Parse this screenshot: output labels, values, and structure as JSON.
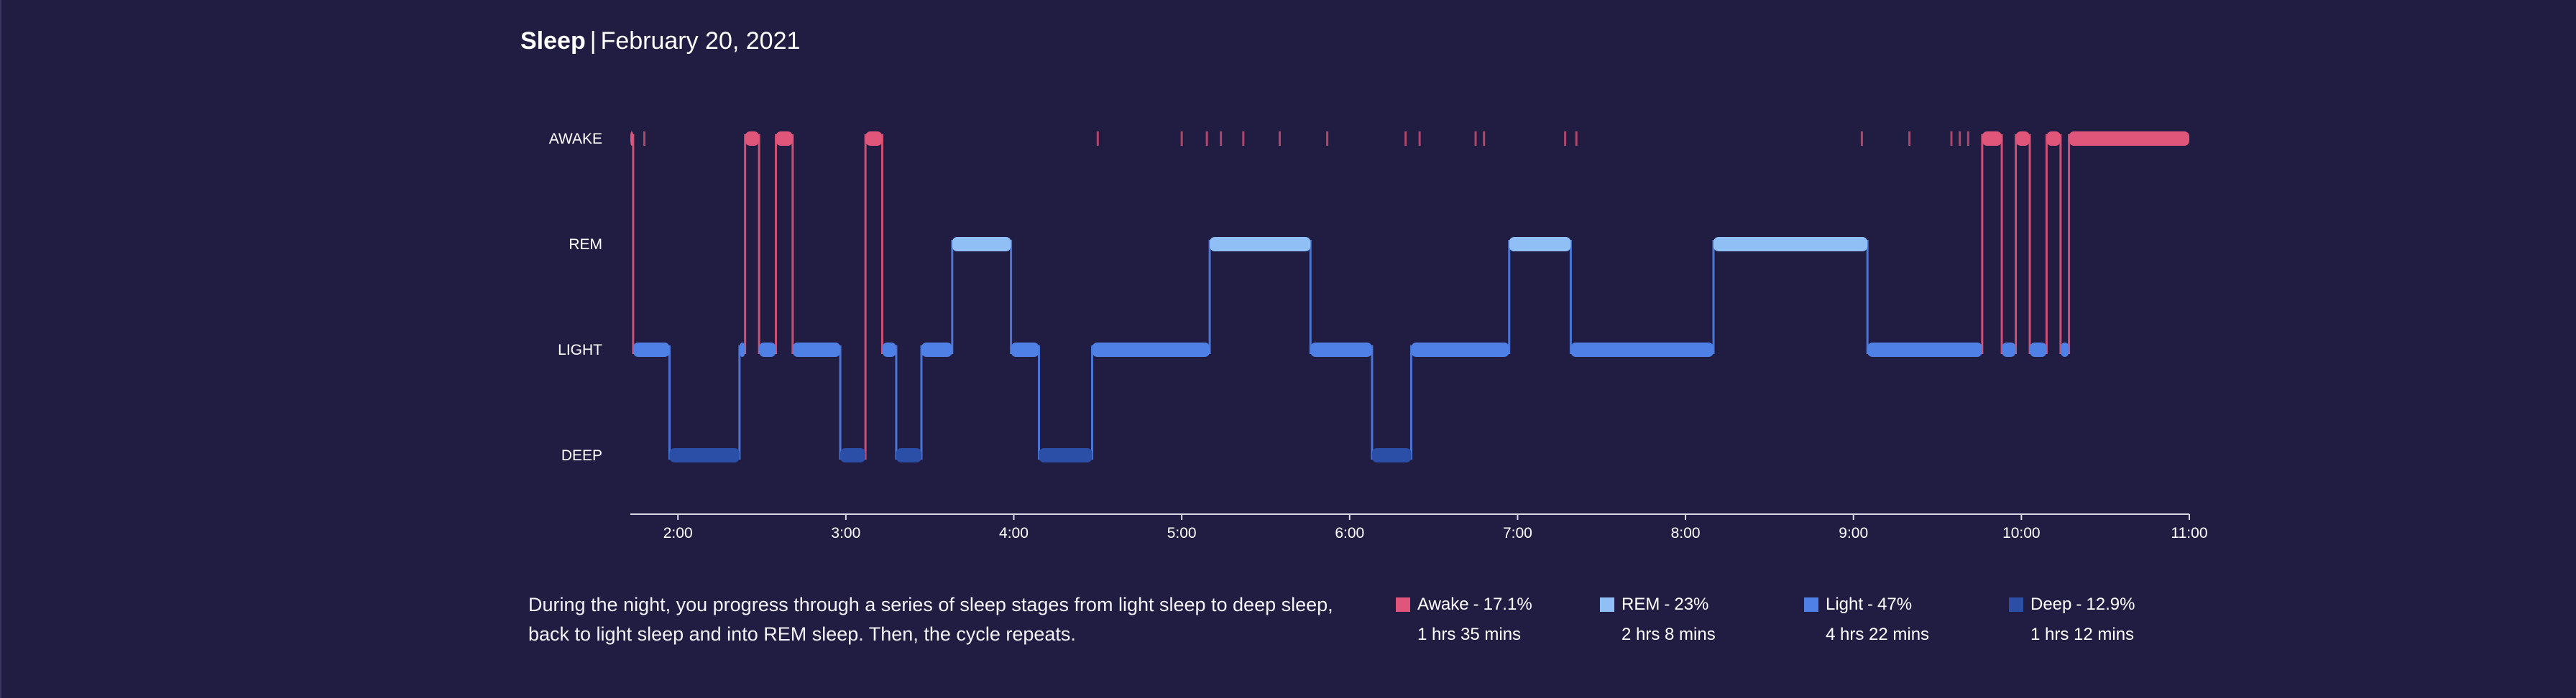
{
  "header": {
    "title": "Sleep",
    "separator": "|",
    "date": "February 20, 2021"
  },
  "description": "During the night, you progress through a series of sleep stages from light sleep to deep sleep, back to light sleep and into REM sleep. Then, the cycle repeats.",
  "legend": [
    {
      "name": "Awake",
      "dash": "-",
      "percent": "17.1%",
      "duration": "1 hrs 35 mins",
      "color": "#e0567a"
    },
    {
      "name": "REM",
      "dash": "-",
      "percent": "23%",
      "duration": "2 hrs 8 mins",
      "color": "#8fbff5"
    },
    {
      "name": "Light",
      "dash": "-",
      "percent": "47%",
      "duration": "4 hrs 22 mins",
      "color": "#4f80e6"
    },
    {
      "name": "Deep",
      "dash": "-",
      "percent": "12.9%",
      "duration": "1 hrs 12 mins",
      "color": "#2b4ea6"
    }
  ],
  "chart_data": {
    "type": "step",
    "title": "Sleep",
    "xlabel": "",
    "ylabel": "",
    "stages": [
      "AWAKE",
      "REM",
      "LIGHT",
      "DEEP"
    ],
    "xlim": [
      "1:43",
      "11:00"
    ],
    "x_ticks": [
      "2:00",
      "3:00",
      "4:00",
      "5:00",
      "6:00",
      "7:00",
      "8:00",
      "9:00",
      "10:00",
      "11:00"
    ],
    "colors": {
      "AWAKE": "#e0567a",
      "REM": "#8fbff5",
      "LIGHT": "#4f80e6",
      "DEEP": "#2b4ea6"
    },
    "segments": [
      {
        "stage": "AWAKE",
        "start": "1:43",
        "end": "1:44"
      },
      {
        "stage": "LIGHT",
        "start": "1:44",
        "end": "1:57"
      },
      {
        "stage": "DEEP",
        "start": "1:57",
        "end": "2:22"
      },
      {
        "stage": "LIGHT",
        "start": "2:22",
        "end": "2:24"
      },
      {
        "stage": "AWAKE",
        "start": "2:24",
        "end": "2:29"
      },
      {
        "stage": "LIGHT",
        "start": "2:29",
        "end": "2:35"
      },
      {
        "stage": "AWAKE",
        "start": "2:35",
        "end": "2:41"
      },
      {
        "stage": "LIGHT",
        "start": "2:41",
        "end": "2:58"
      },
      {
        "stage": "DEEP",
        "start": "2:58",
        "end": "3:07"
      },
      {
        "stage": "AWAKE",
        "start": "3:07",
        "end": "3:13"
      },
      {
        "stage": "LIGHT",
        "start": "3:13",
        "end": "3:18"
      },
      {
        "stage": "DEEP",
        "start": "3:18",
        "end": "3:27"
      },
      {
        "stage": "LIGHT",
        "start": "3:27",
        "end": "3:38"
      },
      {
        "stage": "REM",
        "start": "3:38",
        "end": "3:59"
      },
      {
        "stage": "LIGHT",
        "start": "3:59",
        "end": "4:09"
      },
      {
        "stage": "DEEP",
        "start": "4:09",
        "end": "4:28"
      },
      {
        "stage": "LIGHT",
        "start": "4:28",
        "end": "5:10"
      },
      {
        "stage": "REM",
        "start": "5:10",
        "end": "5:46"
      },
      {
        "stage": "LIGHT",
        "start": "5:46",
        "end": "6:08"
      },
      {
        "stage": "DEEP",
        "start": "6:08",
        "end": "6:22"
      },
      {
        "stage": "LIGHT",
        "start": "6:22",
        "end": "6:57"
      },
      {
        "stage": "REM",
        "start": "6:57",
        "end": "7:19"
      },
      {
        "stage": "LIGHT",
        "start": "7:19",
        "end": "8:10"
      },
      {
        "stage": "REM",
        "start": "8:10",
        "end": "9:05"
      },
      {
        "stage": "LIGHT",
        "start": "9:05",
        "end": "9:46"
      },
      {
        "stage": "AWAKE",
        "start": "9:46",
        "end": "9:53"
      },
      {
        "stage": "LIGHT",
        "start": "9:53",
        "end": "9:58"
      },
      {
        "stage": "AWAKE",
        "start": "9:58",
        "end": "10:03"
      },
      {
        "stage": "LIGHT",
        "start": "10:03",
        "end": "10:09"
      },
      {
        "stage": "AWAKE",
        "start": "10:09",
        "end": "10:14"
      },
      {
        "stage": "LIGHT",
        "start": "10:14",
        "end": "10:17"
      },
      {
        "stage": "AWAKE",
        "start": "10:17",
        "end": "11:00"
      }
    ],
    "brief_awakenings": [
      "1:48",
      "4:30",
      "5:00",
      "5:09",
      "5:14",
      "5:22",
      "5:35",
      "5:52",
      "6:20",
      "6:25",
      "6:45",
      "6:48",
      "7:17",
      "7:21",
      "9:03",
      "9:20",
      "9:35",
      "9:38",
      "9:41"
    ]
  }
}
